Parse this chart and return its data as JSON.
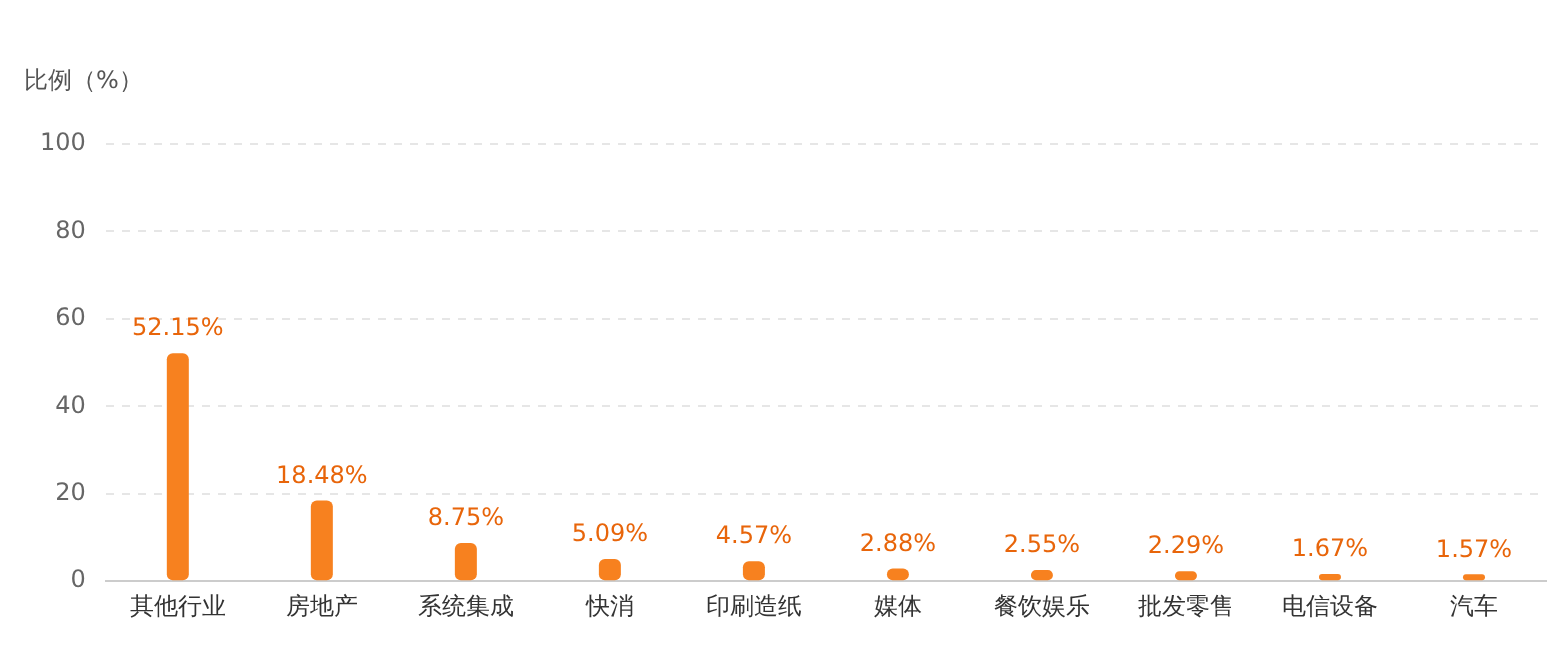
{
  "chart_data": {
    "type": "bar",
    "ylabel": "比例（%）",
    "categories": [
      "其他行业",
      "房地产",
      "系统集成",
      "快消",
      "印刷造纸",
      "媒体",
      "餐饮娱乐",
      "批发零售",
      "电信设备",
      "汽车"
    ],
    "values": [
      52.15,
      18.48,
      8.75,
      5.09,
      4.57,
      2.88,
      2.55,
      2.29,
      1.67,
      1.57
    ],
    "value_labels": [
      "52.15%",
      "18.48%",
      "8.75%",
      "5.09%",
      "4.57%",
      "2.88%",
      "2.55%",
      "2.29%",
      "1.67%",
      "1.57%"
    ],
    "color": "#f7811f",
    "ylim": [
      0,
      100
    ],
    "yticks": [
      0,
      20,
      40,
      60,
      80,
      100
    ],
    "grid": "y",
    "legend": false
  }
}
